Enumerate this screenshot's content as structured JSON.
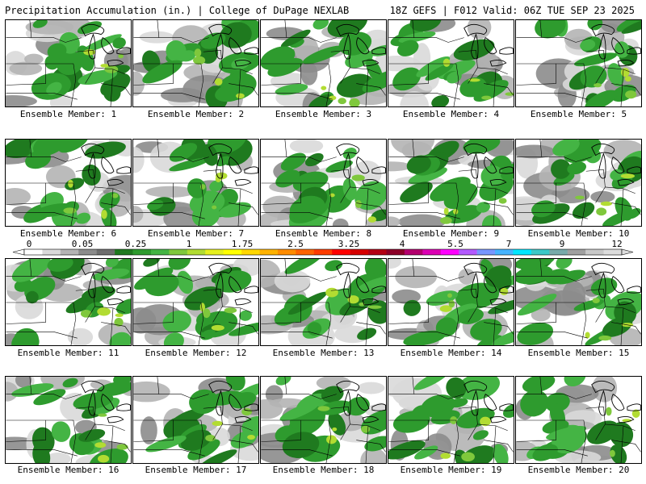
{
  "header": {
    "title": "Precipitation Accumulation (in.) | College of DuPage NEXLAB",
    "run_info": "18Z GEFS | F012 Valid: 06Z TUE SEP 23 2025"
  },
  "colorbar": {
    "labels": [
      "0",
      "0.05",
      "0.25",
      "1",
      "1.75",
      "2.5",
      "3.25",
      "4",
      "5.5",
      "7",
      "9",
      "12"
    ],
    "colors": [
      "#ffffff",
      "#d9d9d9",
      "#b4b4b4",
      "#8c8c8c",
      "#6e6e6e",
      "#1f7a1f",
      "#2e9b2e",
      "#44b444",
      "#7fc83c",
      "#b2dc32",
      "#e6f01e",
      "#ffff00",
      "#ffd700",
      "#ffb300",
      "#ff8c00",
      "#ff6400",
      "#ff3c00",
      "#ff0000",
      "#d70000",
      "#b40014",
      "#8c0028",
      "#b4006e",
      "#dc00b4",
      "#ff00ff",
      "#b45aff",
      "#7896ff",
      "#46b4ff",
      "#00e6ff",
      "#3cc8c8",
      "#78aaaa",
      "#a0a0a0",
      "#c8c8c8",
      "#dcdcdc"
    ]
  },
  "members": [
    {
      "label": "Ensemble Member: 1"
    },
    {
      "label": "Ensemble Member: 2"
    },
    {
      "label": "Ensemble Member: 3"
    },
    {
      "label": "Ensemble Member: 4"
    },
    {
      "label": "Ensemble Member: 5"
    },
    {
      "label": "Ensemble Member: 6"
    },
    {
      "label": "Ensemble Member: 7"
    },
    {
      "label": "Ensemble Member: 8"
    },
    {
      "label": "Ensemble Member: 9"
    },
    {
      "label": "Ensemble Member: 10"
    },
    {
      "label": "Ensemble Member: 11"
    },
    {
      "label": "Ensemble Member: 12"
    },
    {
      "label": "Ensemble Member: 13"
    },
    {
      "label": "Ensemble Member: 14"
    },
    {
      "label": "Ensemble Member: 15"
    },
    {
      "label": "Ensemble Member: 16"
    },
    {
      "label": "Ensemble Member: 17"
    },
    {
      "label": "Ensemble Member: 18"
    },
    {
      "label": "Ensemble Member: 19"
    },
    {
      "label": "Ensemble Member: 20"
    }
  ]
}
